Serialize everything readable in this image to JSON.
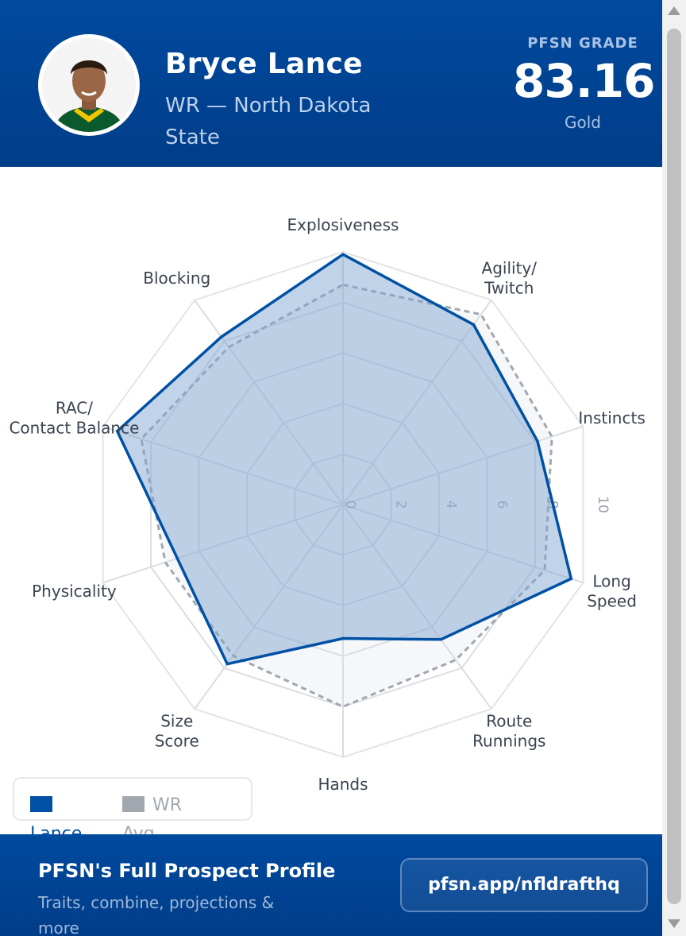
{
  "header": {
    "player_name": "Bryce Lance",
    "position_school": "WR — North Dakota State",
    "grade_label": "PFSN GRADE",
    "grade_value": "83.16",
    "grade_tier": "Gold"
  },
  "chart_data": {
    "type": "radar",
    "axes": [
      "Explosiveness",
      "Agility/\nTwitch",
      "Instincts",
      "Long\nSpeed",
      "Route\nRunnings",
      "Hands",
      "Size\nScore",
      "Physicality",
      "RAC/\nContact Balance",
      "Blocking"
    ],
    "ticks": [
      0,
      2,
      4,
      6,
      8,
      10
    ],
    "range": [
      0,
      10
    ],
    "grid": true,
    "legend_position": "bottom-left",
    "series": [
      {
        "name": "Lance",
        "color": "#0051a5",
        "style": "solid-filled",
        "values": [
          9.9,
          8.8,
          8.1,
          9.5,
          6.6,
          5.3,
          7.8,
          6.9,
          9.4,
          8.2
        ]
      },
      {
        "name": "WR Avg",
        "color": "#a2a8b0",
        "style": "dashed",
        "values": [
          8.7,
          9.3,
          8.7,
          8.4,
          7.6,
          8.0,
          7.4,
          7.4,
          8.4,
          7.7
        ]
      }
    ]
  },
  "legend": {
    "lance_label": "Lance",
    "avg_label": "WR Avg"
  },
  "footer": {
    "title": "PFSN's Full Prospect Profile",
    "subtitle": "Traits, combine, projections & more",
    "link_label": "pfsn.app/nfldrafthq"
  },
  "colors": {
    "brand_blue": "#0051a5",
    "header_bg": "#004a9f",
    "avg_gray": "#a2a8b0"
  }
}
